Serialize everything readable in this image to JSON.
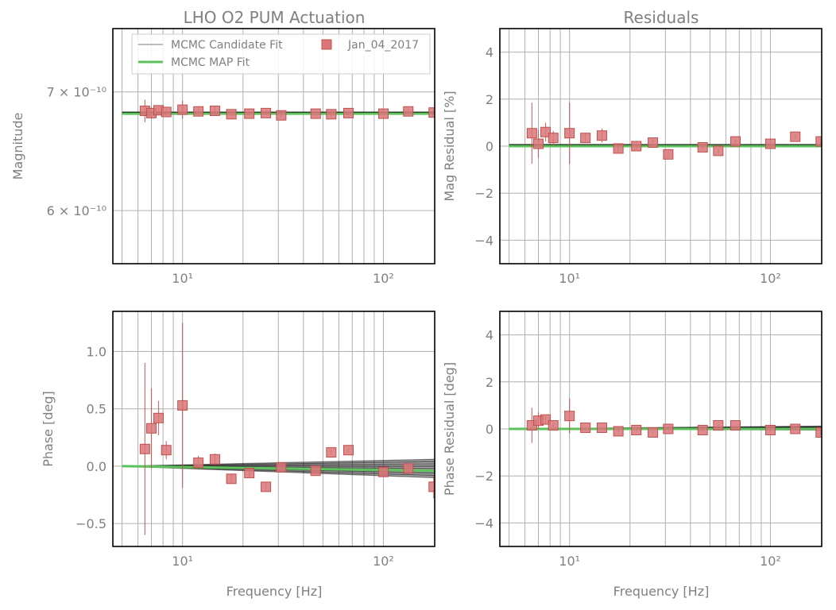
{
  "figure": {
    "title_main": "LHO O2 PUM Actuation",
    "title_resid": "Residuals",
    "xlabel": "Frequency [Hz]"
  },
  "legend": {
    "candidate": "MCMC Candidate Fit",
    "map": "MCMC MAP Fit",
    "data": "Jan_04_2017",
    "placement": "top"
  },
  "colors": {
    "marker": "#d9777a",
    "marker_edge": "#c0504d",
    "map": "#5cc25c",
    "candidate": "#000000",
    "grid": "#b0b0b0",
    "text": "#808080"
  },
  "chart_data": [
    {
      "id": "magnitude",
      "type": "scatter",
      "ylabel": "Magnitude",
      "xscale": "log",
      "yscale": "log",
      "xlim": [
        4.5,
        180
      ],
      "ylim": [
        5.6e-10,
        7.6e-10
      ],
      "xticks": [
        10,
        100
      ],
      "xtick_labels": [
        "10¹",
        "10²"
      ],
      "yticks": [
        6e-10,
        7e-10
      ],
      "ytick_labels": [
        "6 × 10⁻¹⁰",
        "7 × 10⁻¹⁰"
      ],
      "grid": true,
      "x": [
        6.5,
        7.0,
        7.6,
        8.3,
        10.0,
        12.0,
        14.5,
        17.5,
        21.5,
        26.0,
        31.0,
        46.0,
        55.0,
        67.0,
        100.0,
        133.0,
        178.0
      ],
      "y": [
        6.83e-10,
        6.81e-10,
        6.835e-10,
        6.82e-10,
        6.84e-10,
        6.825e-10,
        6.83e-10,
        6.8e-10,
        6.805e-10,
        6.81e-10,
        6.79e-10,
        6.805e-10,
        6.8e-10,
        6.81e-10,
        6.805e-10,
        6.825e-10,
        6.815e-10
      ],
      "yerr": [
        1e-11,
        5e-12,
        3e-12,
        3e-12,
        8e-12,
        2e-12,
        4e-12,
        2e-12,
        2e-12,
        2e-12,
        2e-12,
        2e-12,
        2e-12,
        2e-12,
        2e-12,
        2e-12,
        2e-12
      ],
      "fit_x": [
        5,
        180
      ],
      "map_y": [
        6.805e-10,
        6.805e-10
      ],
      "candidate_y": [
        6.815e-10,
        6.815e-10
      ],
      "legend": true
    },
    {
      "id": "mag-residual",
      "type": "scatter",
      "ylabel": "Mag Residual [%]",
      "xscale": "log",
      "xlim": [
        4.5,
        180
      ],
      "ylim": [
        -5,
        5
      ],
      "xticks": [
        10,
        100
      ],
      "xtick_labels": [
        "10¹",
        "10²"
      ],
      "yticks": [
        -4,
        -2,
        0,
        2,
        4
      ],
      "ytick_labels": [
        "−4",
        "−2",
        "0",
        "2",
        "4"
      ],
      "grid": true,
      "x": [
        6.5,
        7.0,
        7.6,
        8.3,
        10.0,
        12.0,
        14.5,
        17.5,
        21.5,
        26.0,
        31.0,
        46.0,
        55.0,
        67.0,
        100.0,
        133.0,
        178.0
      ],
      "y": [
        0.55,
        0.1,
        0.6,
        0.35,
        0.55,
        0.35,
        0.45,
        -0.1,
        0.0,
        0.15,
        -0.35,
        -0.05,
        -0.2,
        0.2,
        0.1,
        0.4,
        0.2
      ],
      "yerr": [
        1.3,
        0.6,
        0.4,
        0.3,
        1.3,
        0.2,
        0.3,
        0.15,
        0.15,
        0.15,
        0.15,
        0.1,
        0.1,
        0.1,
        0.1,
        0.1,
        0.1
      ],
      "fit_x": [
        5,
        180
      ],
      "map_y": [
        0,
        0
      ],
      "candidate_y": [
        0.05,
        0.05
      ]
    },
    {
      "id": "phase",
      "type": "scatter",
      "ylabel": "Phase [deg]",
      "xscale": "log",
      "xlim": [
        4.5,
        180
      ],
      "ylim": [
        -0.7,
        1.35
      ],
      "xticks": [
        10,
        100
      ],
      "xtick_labels": [
        "10¹",
        "10²"
      ],
      "yticks": [
        -0.5,
        0.0,
        0.5,
        1.0
      ],
      "ytick_labels": [
        "−0.5",
        "0.0",
        "0.5",
        "1.0"
      ],
      "grid": true,
      "x": [
        6.5,
        7.0,
        7.6,
        8.3,
        10.0,
        12.0,
        14.5,
        17.5,
        21.5,
        26.0,
        31.0,
        46.0,
        55.0,
        67.0,
        100.0,
        133.0,
        178.0
      ],
      "y": [
        0.15,
        0.33,
        0.42,
        0.14,
        0.53,
        0.03,
        0.06,
        -0.11,
        -0.06,
        -0.18,
        -0.01,
        -0.04,
        0.12,
        0.14,
        -0.05,
        -0.02,
        -0.18
      ],
      "yerr": [
        0.75,
        0.35,
        0.15,
        0.08,
        0.72,
        0.06,
        0.05,
        0.04,
        0.04,
        0.03,
        0.03,
        0.03,
        0.02,
        0.02,
        0.03,
        0.03,
        0.1
      ],
      "fit_x": [
        5,
        180
      ],
      "map_y": [
        0.0,
        -0.04
      ],
      "candidate_band_upper": [
        0.0,
        0.06
      ],
      "candidate_band_lower": [
        0.0,
        -0.1
      ]
    },
    {
      "id": "phase-residual",
      "type": "scatter",
      "ylabel": "Phase Residual [deg]",
      "xscale": "log",
      "xlim": [
        4.5,
        180
      ],
      "ylim": [
        -5,
        5
      ],
      "xticks": [
        10,
        100
      ],
      "xtick_labels": [
        "10¹",
        "10²"
      ],
      "yticks": [
        -4,
        -2,
        0,
        2,
        4
      ],
      "ytick_labels": [
        "−4",
        "−2",
        "0",
        "2",
        "4"
      ],
      "grid": true,
      "x": [
        6.5,
        7.0,
        7.6,
        8.3,
        10.0,
        12.0,
        14.5,
        17.5,
        21.5,
        26.0,
        31.0,
        46.0,
        55.0,
        67.0,
        100.0,
        133.0,
        178.0
      ],
      "y": [
        0.15,
        0.35,
        0.4,
        0.15,
        0.55,
        0.05,
        0.05,
        -0.1,
        -0.05,
        -0.15,
        0.0,
        -0.05,
        0.15,
        0.15,
        -0.05,
        0.0,
        -0.15
      ],
      "yerr": [
        0.75,
        0.35,
        0.15,
        0.1,
        0.75,
        0.05,
        0.05,
        0.05,
        0.05,
        0.05,
        0.05,
        0.05,
        0.05,
        0.05,
        0.05,
        0.05,
        0.1
      ],
      "fit_x": [
        5,
        180
      ],
      "map_y": [
        0,
        0
      ],
      "candidate_band_upper": [
        0.0,
        0.12
      ],
      "candidate_band_lower": [
        0.0,
        -0.05
      ]
    }
  ]
}
